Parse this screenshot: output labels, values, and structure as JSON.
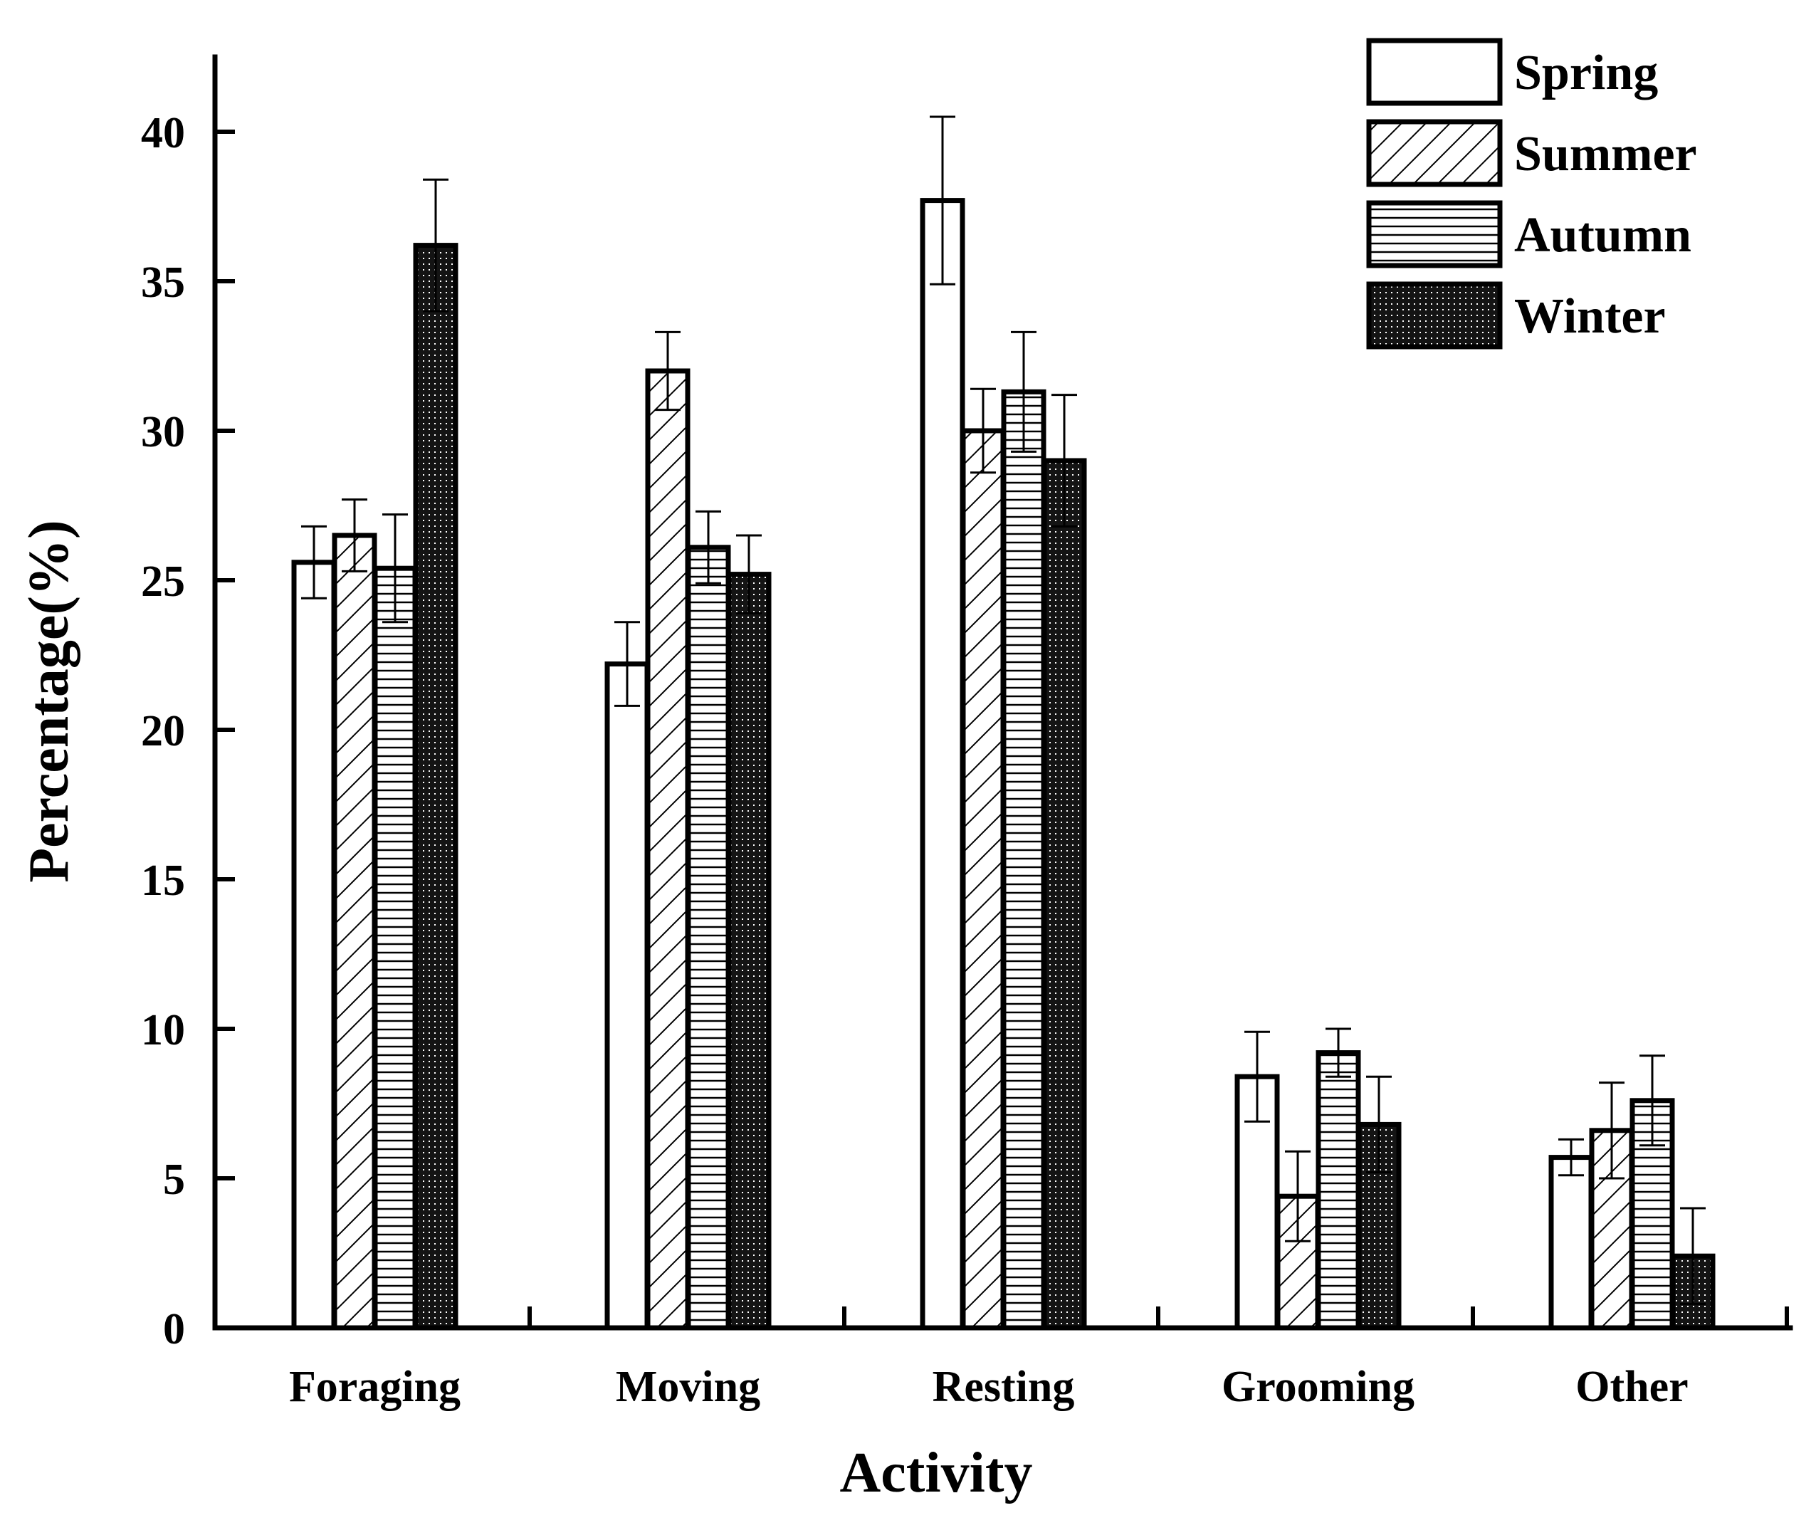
{
  "chart_data": {
    "type": "bar",
    "title": "",
    "xlabel": "Activity",
    "ylabel": "Percentage(%)",
    "ylim": [
      0,
      42.5
    ],
    "yticks": [
      0,
      5,
      10,
      15,
      20,
      25,
      30,
      35,
      40
    ],
    "categories": [
      "Foraging",
      "Moving",
      "Resting",
      "Grooming",
      "Other"
    ],
    "error_bars": "upper and lower whiskers, ± values listed per series",
    "legend_position": "top-right",
    "series": [
      {
        "name": "Spring",
        "pattern": "solid-white",
        "values": [
          25.6,
          22.2,
          37.7,
          8.4,
          5.7
        ],
        "errors": [
          1.2,
          1.4,
          2.8,
          1.5,
          0.6
        ]
      },
      {
        "name": "Summer",
        "pattern": "diagonal-hatch",
        "values": [
          26.5,
          32.0,
          30.0,
          4.4,
          6.6
        ],
        "errors": [
          1.2,
          1.3,
          1.4,
          1.5,
          1.6
        ]
      },
      {
        "name": "Autumn",
        "pattern": "horizontal-lines",
        "values": [
          25.4,
          26.1,
          31.3,
          9.2,
          7.6
        ],
        "errors": [
          1.8,
          1.2,
          2.0,
          0.8,
          1.5
        ]
      },
      {
        "name": "Winter",
        "pattern": "dark-dotted",
        "values": [
          36.2,
          25.2,
          29.0,
          6.8,
          2.4
        ],
        "errors": [
          2.2,
          1.3,
          2.2,
          1.6,
          1.6
        ]
      }
    ]
  }
}
